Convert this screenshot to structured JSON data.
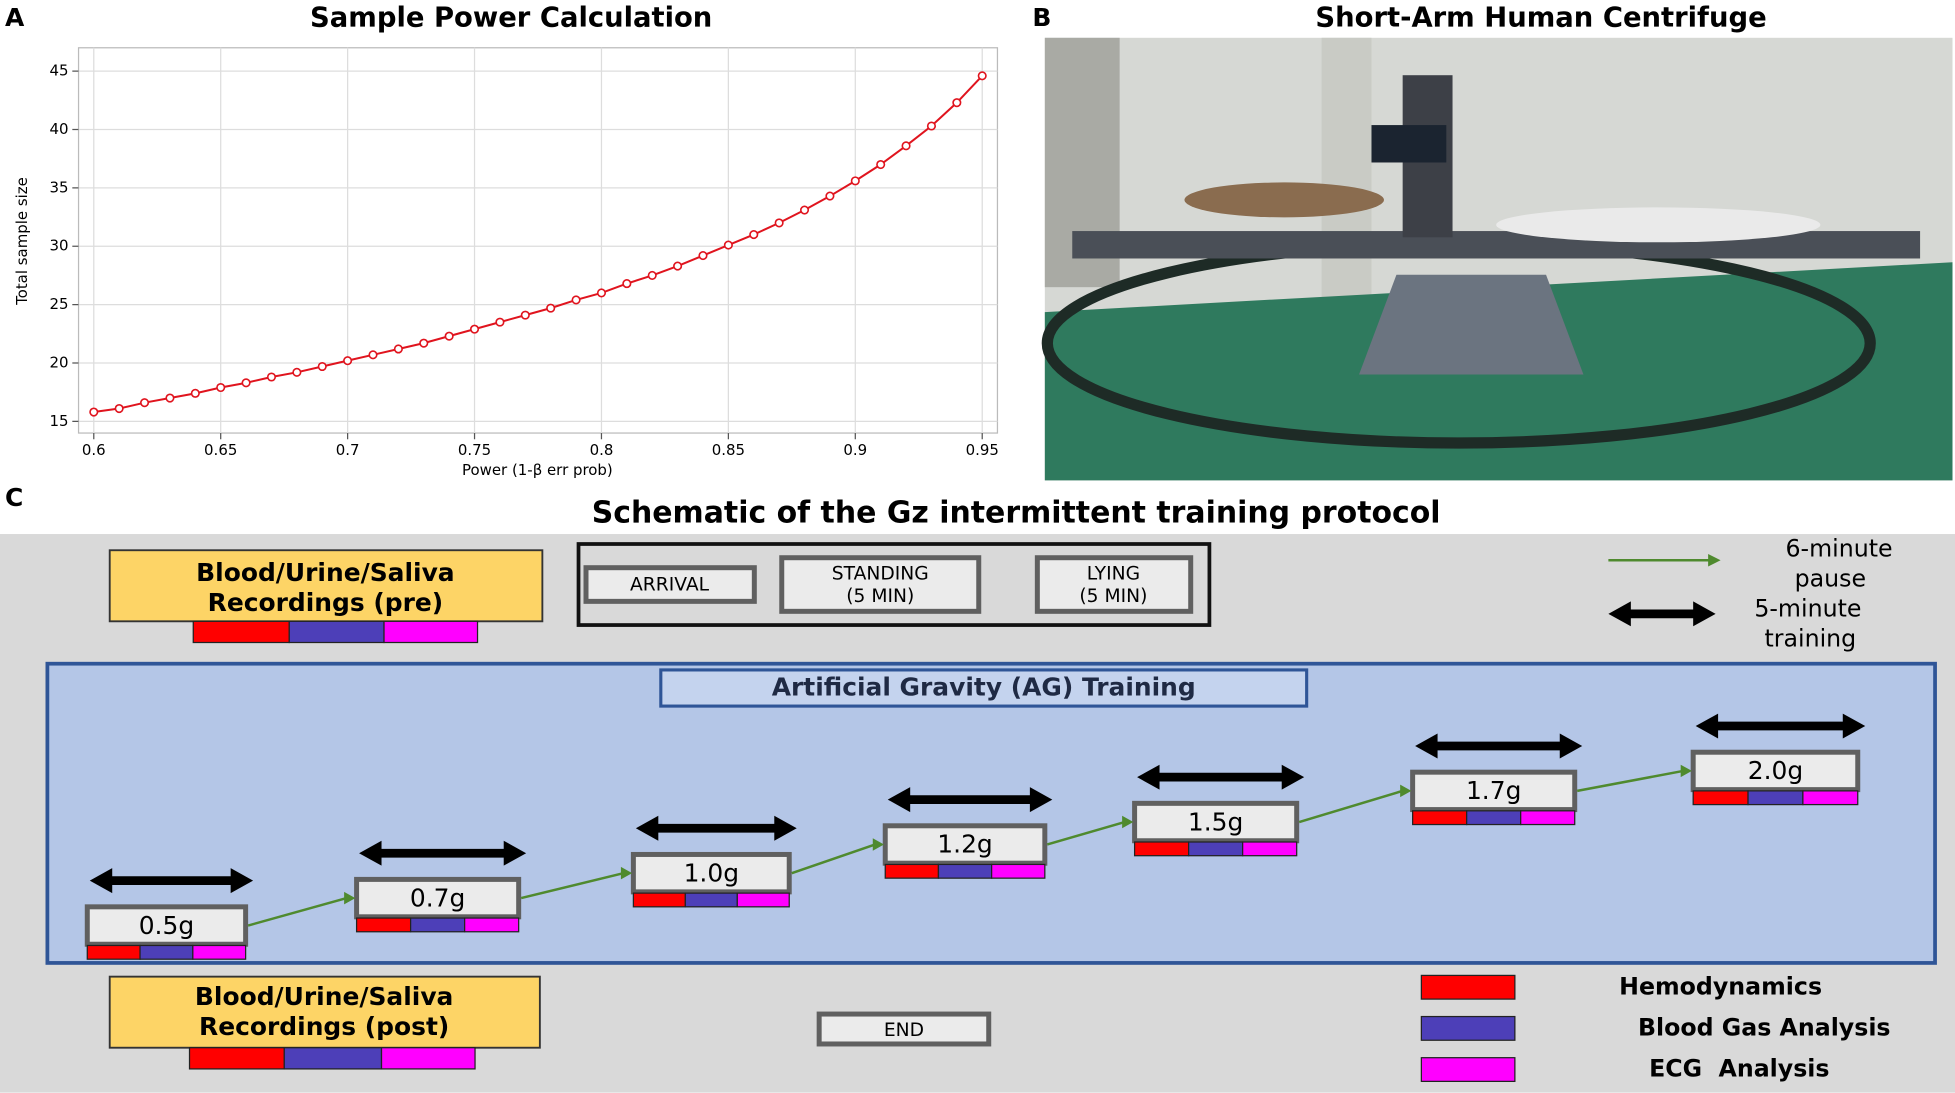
{
  "chart_data": {
    "type": "line",
    "panel_label": "A",
    "title": "Sample Power Calculation",
    "x_label": "Power (1-β err prob)",
    "y_label": "Total sample size",
    "x": [
      0.6,
      0.61,
      0.62,
      0.63,
      0.64,
      0.65,
      0.66,
      0.67,
      0.68,
      0.69,
      0.7,
      0.71,
      0.72,
      0.73,
      0.74,
      0.75,
      0.76,
      0.77,
      0.78,
      0.79,
      0.8,
      0.81,
      0.82,
      0.83,
      0.84,
      0.85,
      0.86,
      0.87,
      0.88,
      0.89,
      0.9,
      0.91,
      0.92,
      0.93,
      0.94,
      0.95
    ],
    "values": [
      15.8,
      16.1,
      16.6,
      17.0,
      17.4,
      17.9,
      18.3,
      18.8,
      19.2,
      19.7,
      20.2,
      20.7,
      21.2,
      21.7,
      22.3,
      22.9,
      23.5,
      24.1,
      24.7,
      25.4,
      26.0,
      26.8,
      27.5,
      28.3,
      29.2,
      30.1,
      31.0,
      32.0,
      33.1,
      34.3,
      35.6,
      37.0,
      38.6,
      40.3,
      42.3,
      44.6
    ],
    "color": "#e0141e",
    "xlim": [
      0.594,
      0.956
    ],
    "ylim": [
      14,
      47
    ],
    "xticks": [
      0.6,
      0.65,
      0.7,
      0.75,
      0.8,
      0.85,
      0.9,
      0.95
    ],
    "yticks": [
      15,
      20,
      25,
      30,
      35,
      40,
      45
    ],
    "grid": true
  },
  "photo": {
    "panel_label": "B",
    "title": "Short-Arm Human Centrifuge"
  },
  "schematic": {
    "panel_label": "C",
    "title": "Schematic of the Gz intermittent training protocol",
    "pre": [
      "Blood/Urine/Saliva",
      "Recordings (pre)"
    ],
    "arrival": "ARRIVAL",
    "standing": [
      "STANDING",
      "(5 MIN)"
    ],
    "lying": [
      "LYING",
      "(5 MIN)"
    ],
    "pause_legend": [
      "6-minute",
      "pause"
    ],
    "training_legend": [
      "5-minute",
      "training"
    ],
    "ag_title": "Artificial Gravity (AG) Training",
    "levels": [
      "0.5g",
      "0.7g",
      "1.0g",
      "1.2g",
      "1.5g",
      "1.7g",
      "2.0g"
    ],
    "post": [
      "Blood/Urine/Saliva",
      "Recordings (post)"
    ],
    "end": "END",
    "measures": [
      {
        "name": "Hemodynamics",
        "color": "#ff0000"
      },
      {
        "name": "Blood Gas Analysis",
        "color": "#4d3fb8"
      },
      {
        "name": "ECG  Analysis",
        "color": "#ff00ff"
      }
    ]
  }
}
